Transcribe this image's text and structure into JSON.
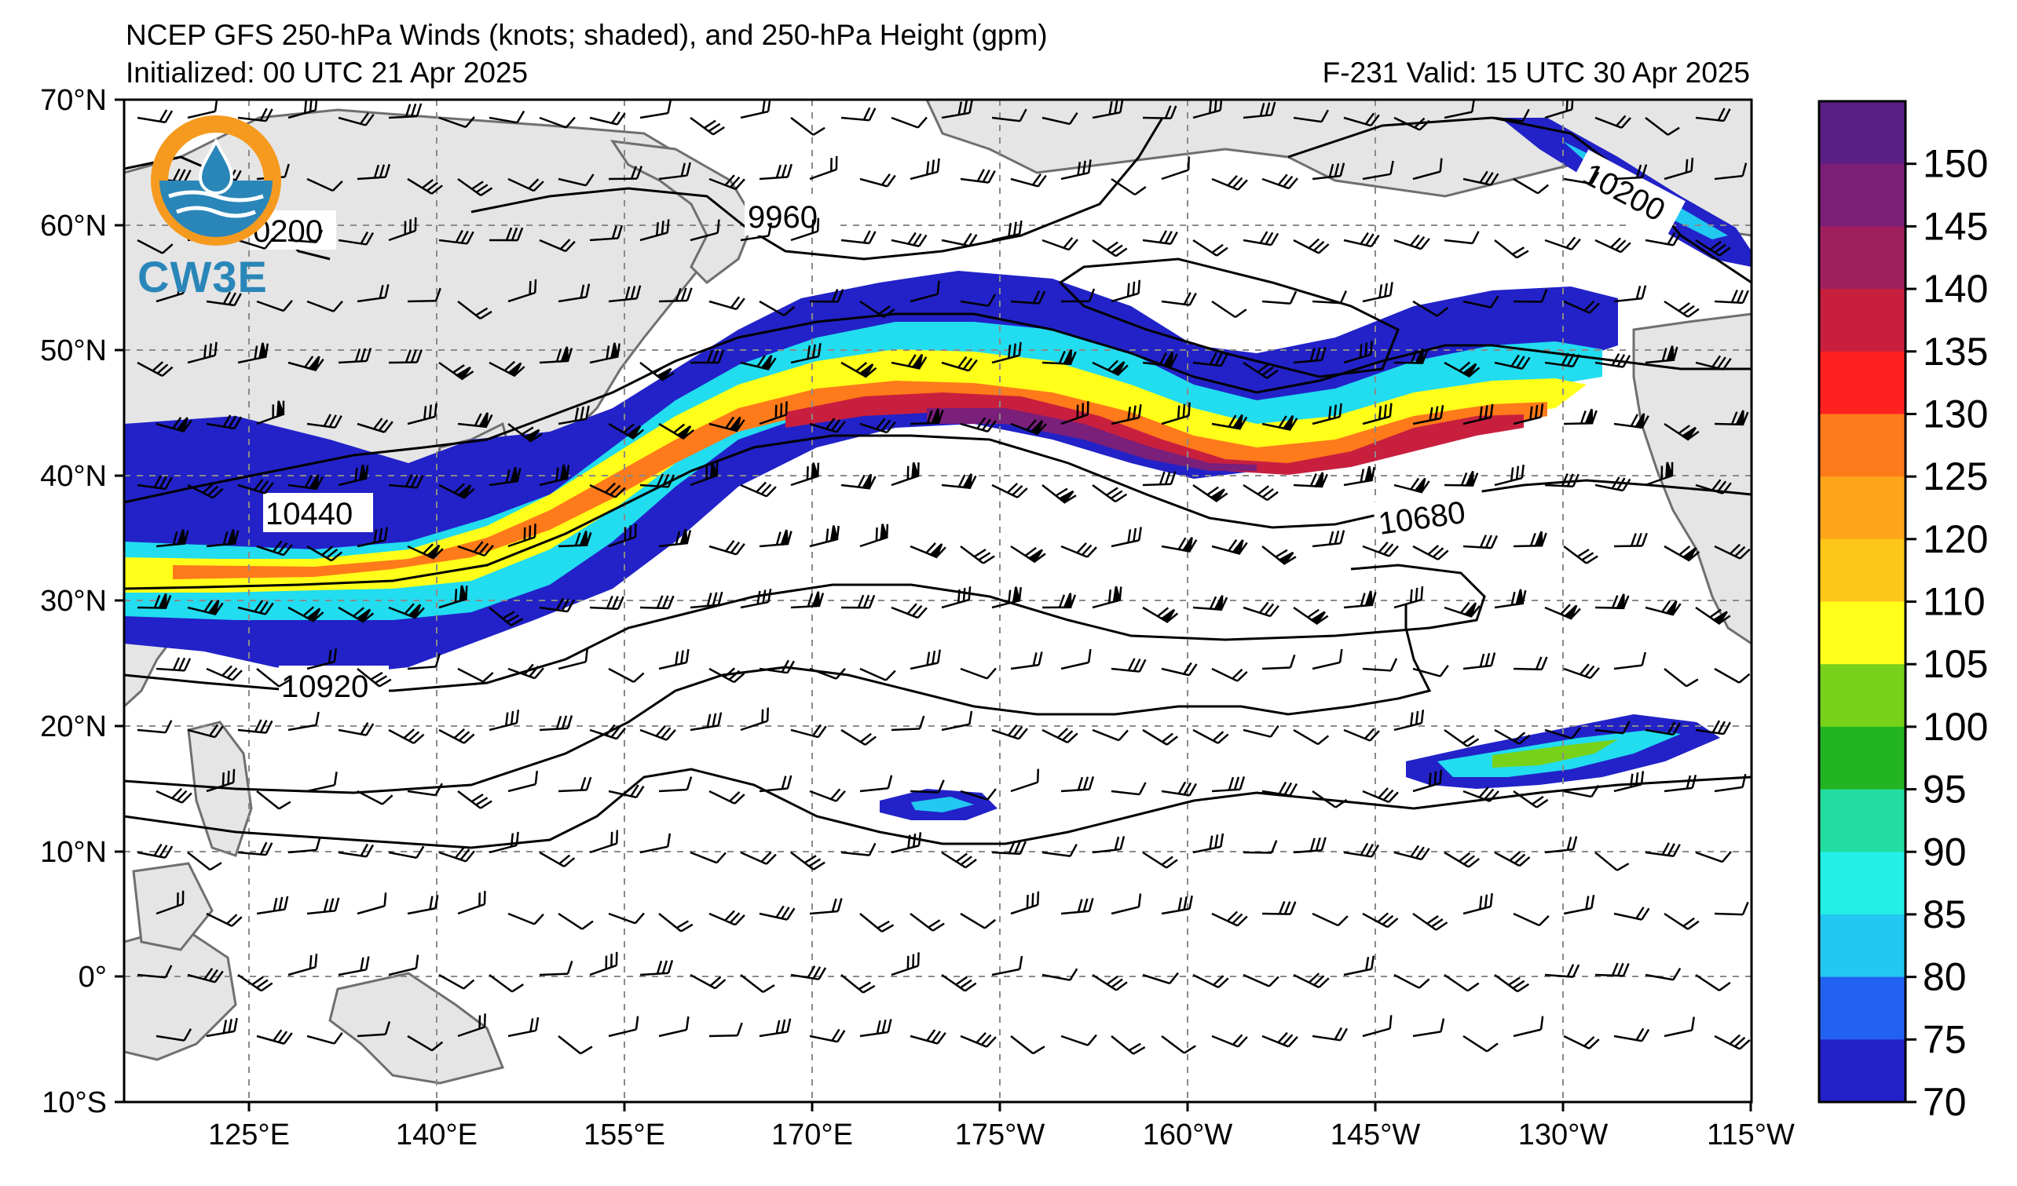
{
  "header": {
    "title": "NCEP GFS 250-hPa Winds (knots; shaded), and 250-hPa Height (gpm)",
    "initialized": "Initialized: 00 UTC 21 Apr 2025",
    "valid": "F-231  Valid: 15 UTC 30 Apr 2025"
  },
  "logo": {
    "text": "CW3E"
  },
  "map": {
    "lat_labels": [
      "70°N",
      "60°N",
      "50°N",
      "40°N",
      "30°N",
      "20°N",
      "10°N",
      "0°",
      "10°S"
    ],
    "lon_labels": [
      "125°E",
      "140°E",
      "155°E",
      "170°E",
      "175°W",
      "160°W",
      "145°W",
      "130°W",
      "115°W"
    ],
    "contour_labels": [
      "0200",
      "9960",
      "10200",
      "10440",
      "10680",
      "10920"
    ],
    "jet_color_max": "#7a1f7a",
    "land_color": "#e5e5e5",
    "coast_color": "#6f6f6f",
    "grid": true
  },
  "colorbar": {
    "ticks": [
      "150",
      "145",
      "140",
      "135",
      "130",
      "125",
      "120",
      "110",
      "105",
      "100",
      "95",
      "90",
      "85",
      "80",
      "75",
      "70"
    ],
    "colors": [
      "#5a1f85",
      "#7d1f78",
      "#a01f5f",
      "#c81f3f",
      "#ff2020",
      "#ff7a1a",
      "#ffa51a",
      "#ffc61a",
      "#ffff1a",
      "#78d21a",
      "#22b422",
      "#22dca0",
      "#22f0e6",
      "#22c8f0",
      "#2262f0",
      "#2222c8"
    ]
  }
}
